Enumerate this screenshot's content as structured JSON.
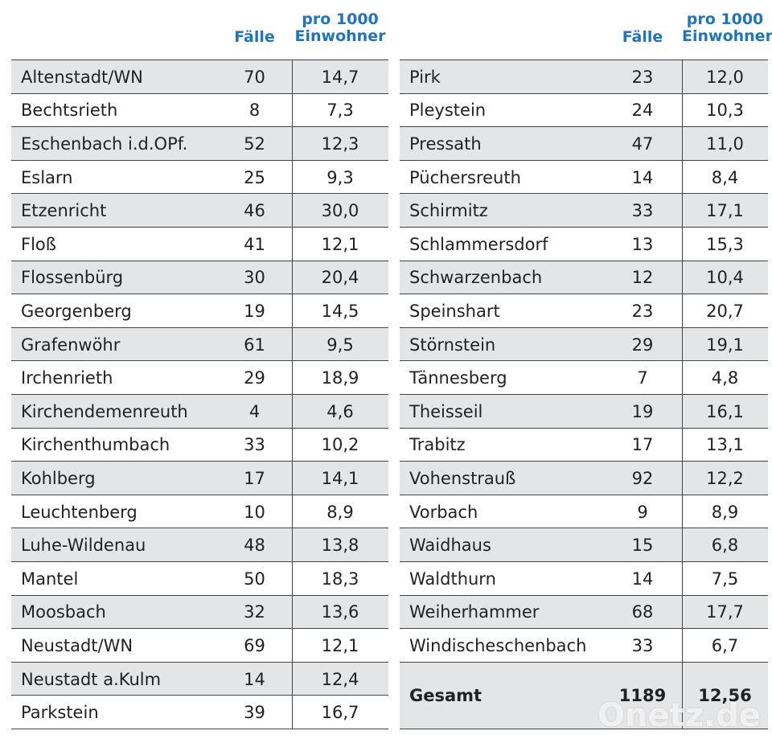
{
  "tables": [
    {
      "header": {
        "cases": "Fälle",
        "rate": "pro 1000\nEinwohner"
      },
      "rows": [
        [
          "Altenstadt/WN",
          "70",
          "14,7"
        ],
        [
          "Bechtsrieth",
          "8",
          "7,3"
        ],
        [
          "Eschenbach i.d.OPf.",
          "52",
          "12,3"
        ],
        [
          "Eslarn",
          "25",
          "9,3"
        ],
        [
          "Etzenricht",
          "46",
          "30,0"
        ],
        [
          "Floß",
          "41",
          "12,1"
        ],
        [
          "Flossenbürg",
          "30",
          "20,4"
        ],
        [
          "Georgenberg",
          "19",
          "14,5"
        ],
        [
          "Grafenwöhr",
          "61",
          "9,5"
        ],
        [
          "Irchenrieth",
          "29",
          "18,9"
        ],
        [
          "Kirchendemenreuth",
          "4",
          "4,6"
        ],
        [
          "Kirchenthumbach",
          "33",
          "10,2"
        ],
        [
          "Kohlberg",
          "17",
          "14,1"
        ],
        [
          "Leuchtenberg",
          "10",
          "8,9"
        ],
        [
          "Luhe-Wildenau",
          "48",
          "13,8"
        ],
        [
          "Mantel",
          "50",
          "18,3"
        ],
        [
          "Moosbach",
          "32",
          "13,6"
        ],
        [
          "Neustadt/WN",
          "69",
          "12,1"
        ],
        [
          "Neustadt a.Kulm",
          "14",
          "12,4"
        ],
        [
          "Parkstein",
          "39",
          "16,7"
        ]
      ]
    },
    {
      "header": {
        "cases": "Fälle",
        "rate": "pro 1000\nEinwohner"
      },
      "rows": [
        [
          "Pirk",
          "23",
          "12,0"
        ],
        [
          "Pleystein",
          "24",
          "10,3"
        ],
        [
          "Pressath",
          "47",
          "11,0"
        ],
        [
          "Püchersreuth",
          "14",
          "8,4"
        ],
        [
          "Schirmitz",
          "33",
          "17,1"
        ],
        [
          "Schlammersdorf",
          "13",
          "15,3"
        ],
        [
          "Schwarzenbach",
          "12",
          "10,4"
        ],
        [
          "Speinshart",
          "23",
          "20,7"
        ],
        [
          "Störnstein",
          "29",
          "19,1"
        ],
        [
          "Tännesberg",
          "7",
          "4,8"
        ],
        [
          "Theisseil",
          "19",
          "16,1"
        ],
        [
          "Trabitz",
          "17",
          "13,1"
        ],
        [
          "Vohenstrauß",
          "92",
          "12,2"
        ],
        [
          "Vorbach",
          "9",
          "8,9"
        ],
        [
          "Waidhaus",
          "15",
          "6,8"
        ],
        [
          "Waldthurn",
          "14",
          "7,5"
        ],
        [
          "Weiherhammer",
          "68",
          "17,7"
        ],
        [
          "Windischeschenbach",
          "33",
          "6,7"
        ]
      ],
      "total": [
        "Gesamt",
        "1189",
        "12,56"
      ]
    }
  ],
  "watermark": "Onetz.de"
}
